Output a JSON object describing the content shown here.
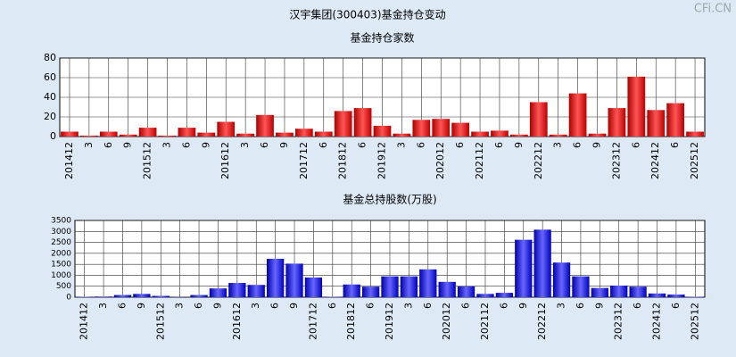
{
  "title": "汉宇集团(300403)基金持仓变动",
  "watermark": "CFi.CN",
  "chart_data": [
    {
      "type": "bar",
      "title": "基金持仓家数",
      "color": "#e02020",
      "categories": [
        "201412",
        "3",
        "6",
        "9",
        "201512",
        "3",
        "6",
        "9",
        "201612",
        "3",
        "6",
        "9",
        "201712",
        "6",
        "201812",
        "6",
        "201912",
        "3",
        "6",
        "202012",
        "6",
        "202112",
        "6",
        "9",
        "202212",
        "3",
        "6",
        "9",
        "202312",
        "6",
        "202412",
        "6",
        "202512"
      ],
      "values": [
        5,
        1,
        5,
        2,
        9,
        1,
        9,
        4,
        15,
        3,
        22,
        4,
        8,
        5,
        26,
        29,
        11,
        3,
        17,
        18,
        14,
        5,
        6,
        2,
        35,
        2,
        44,
        3,
        29,
        61,
        27,
        34,
        5
      ],
      "ylim": [
        0,
        80
      ],
      "yticks": [
        0,
        20,
        40,
        60,
        80
      ],
      "grid": true
    },
    {
      "type": "bar",
      "title": "基金总持股数(万股)",
      "color": "#2020e0",
      "categories": [
        "201412",
        "3",
        "6",
        "9",
        "201512",
        "3",
        "6",
        "9",
        "201612",
        "3",
        "6",
        "9",
        "201712",
        "6",
        "201812",
        "6",
        "201912",
        "3",
        "6",
        "202012",
        "6",
        "202112",
        "6",
        "9",
        "202212",
        "3",
        "6",
        "9",
        "202312",
        "6",
        "202412",
        "6",
        "202512"
      ],
      "values": [
        20,
        30,
        100,
        150,
        60,
        10,
        100,
        400,
        650,
        560,
        1750,
        1530,
        900,
        20,
        580,
        480,
        950,
        950,
        1270,
        700,
        490,
        150,
        200,
        2620,
        3080,
        1580,
        950,
        420,
        530,
        480,
        170,
        120,
        20
      ],
      "ylim": [
        0,
        3500
      ],
      "yticks": [
        0,
        500,
        1000,
        1500,
        2000,
        2500,
        3000,
        3500
      ],
      "grid": true
    }
  ]
}
